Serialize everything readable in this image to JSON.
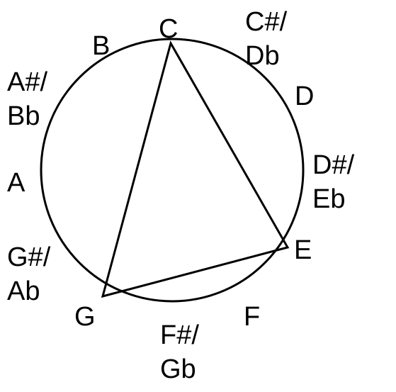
{
  "diagram": {
    "notes": {
      "c": "C",
      "c_sharp_1": "C#/",
      "c_sharp_2": "Db",
      "d": "D",
      "d_sharp_1": "D#/",
      "d_sharp_2": "Eb",
      "e": "E",
      "f": "F",
      "f_sharp_1": "F#/",
      "f_sharp_2": "Gb",
      "g": "G",
      "g_sharp_1": "G#/",
      "g_sharp_2": "Ab",
      "a": "A",
      "a_sharp_1": "A#/",
      "a_sharp_2": "Bb",
      "b": "B"
    },
    "triangle_vertices": [
      "C",
      "E",
      "G"
    ],
    "colors": {
      "line": "#000000",
      "background": "#ffffff"
    }
  }
}
